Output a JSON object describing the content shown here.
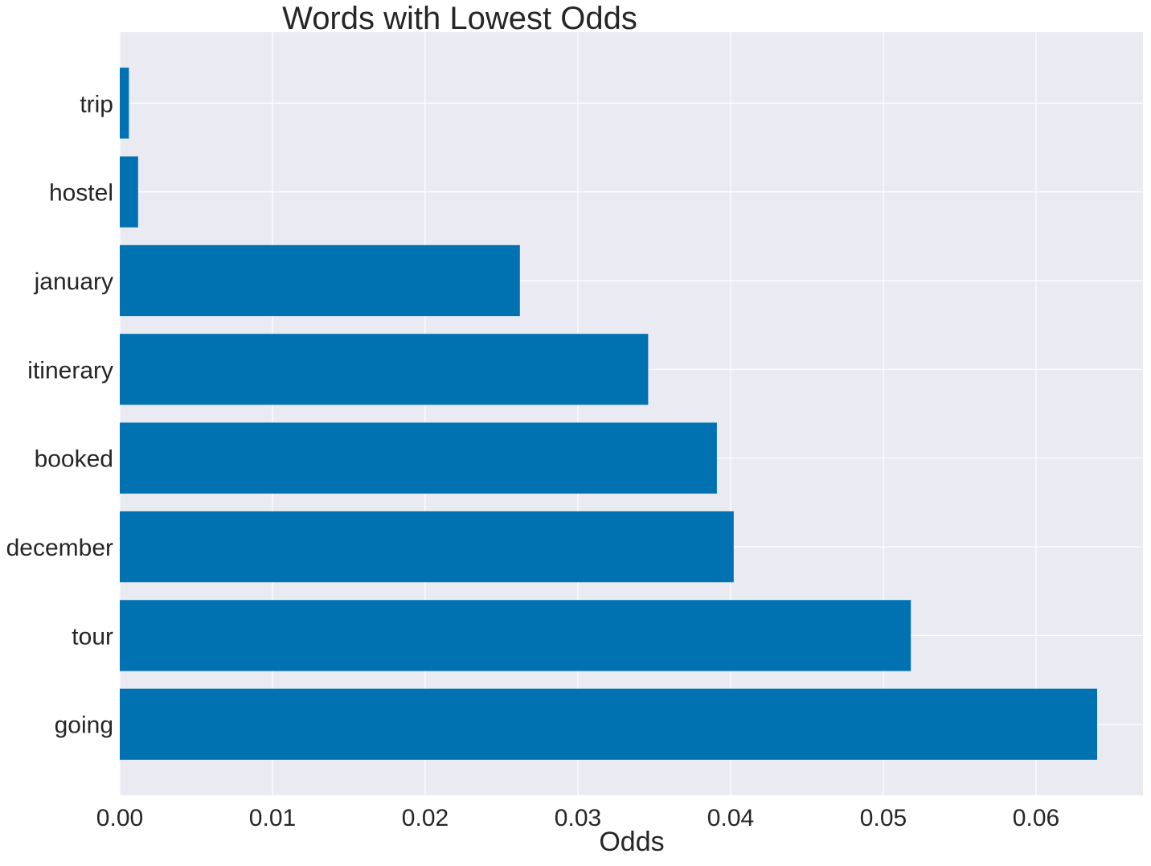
{
  "chart_data": {
    "type": "bar",
    "orientation": "horizontal",
    "title": "Words with Lowest Odds",
    "xlabel": "Odds",
    "ylabel": "",
    "categories": [
      "trip",
      "hostel",
      "january",
      "itinerary",
      "booked",
      "december",
      "tour",
      "going"
    ],
    "values": [
      0.0006,
      0.0012,
      0.0262,
      0.0346,
      0.0391,
      0.0402,
      0.0518,
      0.064
    ],
    "xlim": [
      0,
      0.067
    ],
    "xticks": [
      0.0,
      0.01,
      0.02,
      0.03,
      0.04,
      0.05,
      0.06
    ],
    "xtick_labels": [
      "0.00",
      "0.01",
      "0.02",
      "0.03",
      "0.04",
      "0.05",
      "0.06"
    ],
    "grid": true,
    "colors": {
      "bar": "#0072b2",
      "plot_background": "#eaeaf2",
      "grid": "#ffffff",
      "text": "#262626"
    }
  }
}
